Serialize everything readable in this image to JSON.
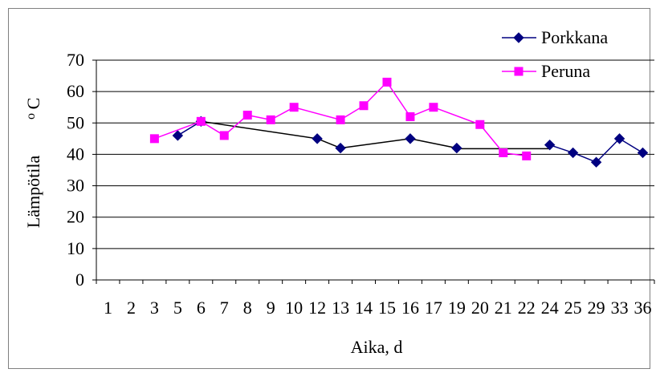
{
  "chart_data": {
    "type": "line",
    "title": "",
    "xlabel": "Aika, d",
    "ylabel": "Lämpötila",
    "ylabel_unit": "o C",
    "ylim": [
      0,
      70
    ],
    "yticks": [
      0,
      10,
      20,
      30,
      40,
      50,
      60,
      70
    ],
    "grid": true,
    "legend_position": "top-right",
    "categories": [
      "1",
      "2",
      "3",
      "5",
      "6",
      "7",
      "8",
      "9",
      "10",
      "12",
      "13",
      "14",
      "15",
      "16",
      "17",
      "19",
      "20",
      "21",
      "22",
      "24",
      "25",
      "29",
      "33",
      "36"
    ],
    "series": [
      {
        "name": "Porkkana",
        "color": "#000080",
        "marker": "diamond",
        "values": [
          null,
          null,
          null,
          46,
          50.5,
          null,
          null,
          null,
          null,
          45,
          42,
          null,
          null,
          45,
          null,
          42,
          null,
          null,
          null,
          43,
          40.5,
          37.5,
          45,
          40.5
        ],
        "connected_pairs": [
          [
            3,
            4
          ],
          [
            4,
            9
          ],
          [
            9,
            10
          ],
          [
            10,
            13
          ],
          [
            13,
            15
          ],
          [
            19,
            20
          ],
          [
            20,
            21
          ],
          [
            21,
            22
          ],
          [
            22,
            23
          ]
        ],
        "segments_without_markers": [
          {
            "from_category": "19",
            "to_category": "24",
            "value": 41.8
          }
        ]
      },
      {
        "name": "Peruna",
        "color": "#ff00ff",
        "marker": "square",
        "values": [
          null,
          null,
          45,
          null,
          50.5,
          46,
          52.5,
          51,
          55,
          null,
          51,
          55.5,
          63,
          52,
          55,
          null,
          49.5,
          40.5,
          39.5,
          null,
          null,
          null,
          null,
          null
        ],
        "connected_pairs": [
          [
            2,
            4
          ],
          [
            4,
            5
          ],
          [
            5,
            6
          ],
          [
            6,
            7
          ],
          [
            7,
            8
          ],
          [
            8,
            10
          ],
          [
            10,
            11
          ],
          [
            11,
            12
          ],
          [
            12,
            13
          ],
          [
            13,
            14
          ],
          [
            14,
            16
          ],
          [
            16,
            17
          ],
          [
            17,
            18
          ]
        ]
      }
    ]
  },
  "colors": {
    "background": "#ffffff",
    "gridline": "#000000",
    "frame": "#808080"
  }
}
